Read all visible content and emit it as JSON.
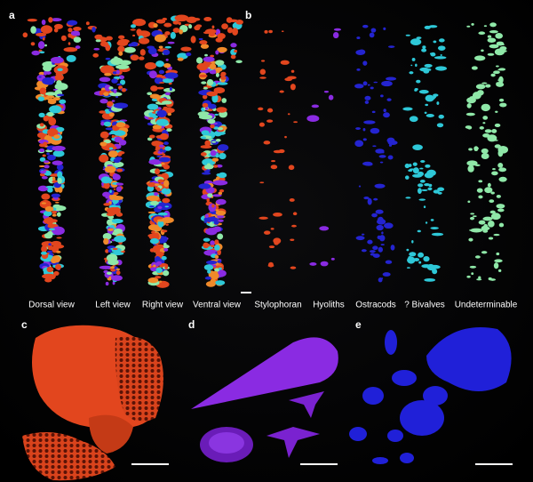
{
  "panels": {
    "a": {
      "label": "a",
      "views": [
        "Dorsal view",
        "Left view",
        "Right view",
        "Ventral view"
      ]
    },
    "b": {
      "label": "b",
      "groups": [
        "Stylophoran",
        "Hyoliths",
        "Ostracods",
        "? Bivalves",
        "Undeterminable"
      ]
    },
    "c": {
      "label": "c"
    },
    "d": {
      "label": "d"
    },
    "e": {
      "label": "e"
    }
  }
}
